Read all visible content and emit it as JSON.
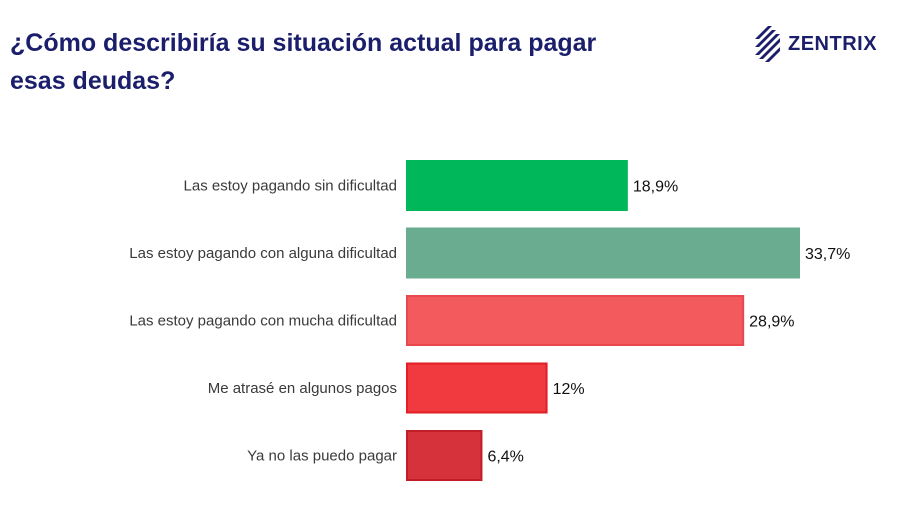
{
  "header": {
    "title": "¿Cómo describiría su situación actual para pagar esas deudas?",
    "logo_text": "ZENTRIX",
    "logo_icon": "zentrix-stripes-icon"
  },
  "chart_data": {
    "type": "bar",
    "orientation": "horizontal",
    "title": "¿Cómo describiría su situación actual para pagar esas deudas?",
    "categories": [
      "Las estoy pagando sin dificultad",
      "Las estoy pagando con alguna dificultad",
      "Las estoy pagando con mucha dificultad",
      "Me atrasé en algunos pagos",
      "Ya no las puedo pagar"
    ],
    "values": [
      18.9,
      33.7,
      28.9,
      12,
      6.4
    ],
    "value_labels": [
      "18,9%",
      "33,7%",
      "28,9%",
      "12%",
      "6,4%"
    ],
    "colors": [
      "#00b85a",
      "#6aac90",
      "#f25a5e",
      "#f03a3f",
      "#d6323c"
    ],
    "edge_colors": [
      "#00b85a",
      "#6aac90",
      "#e8474c",
      "#e11f25",
      "#c21e28"
    ],
    "xlim": [
      0,
      33.7
    ],
    "grid": false,
    "legend": "none"
  }
}
